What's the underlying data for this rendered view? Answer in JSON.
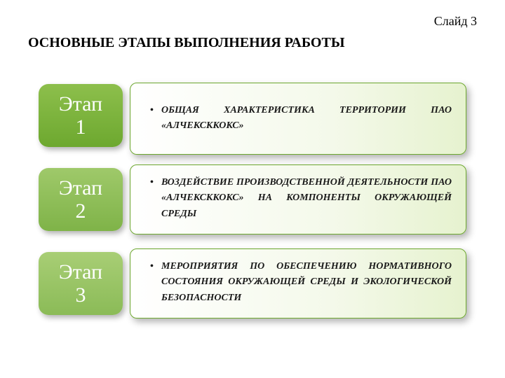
{
  "slide_number": "Слайд 3",
  "title": "ОСНОВНЫЕ ЭТАПЫ ВЫПОЛНЕНИЯ РАБОТЫ",
  "stages": [
    {
      "label_line1": "Этап",
      "label_line2": "1",
      "badge_gradient": [
        "#8dbf4c",
        "#6da82f"
      ],
      "description": "ОБЩАЯ ХАРАКТЕРИСТИКА ТЕРРИТОРИИ ПАО «АЛЧЕКСККОКС»"
    },
    {
      "label_line1": "Этап",
      "label_line2": "2",
      "badge_gradient": [
        "#9fc96a",
        "#7fb348"
      ],
      "description": "ВОЗДЕЙСТВИЕ ПРОИЗВОДСТВЕННОЙ ДЕЯТЕЛЬНОСТИ ПАО «АЛЧЕКСККОКС» НА КОМПОНЕНТЫ ОКРУЖАЮЩЕЙ СРЕДЫ"
    },
    {
      "label_line1": "Этап",
      "label_line2": "3",
      "badge_gradient": [
        "#a8ce75",
        "#8bbb57"
      ],
      "description": "МЕРОПРИЯТИЯ ПО ОБЕСПЕЧЕНИЮ НОРМАТИВНОГО СОСТОЯНИЯ ОКРУЖАЮЩЕЙ СРЕДЫ И ЭКОЛОГИЧЕСКОЙ БЕЗОПАСНОСТИ"
    }
  ],
  "styling": {
    "background_color": "#ffffff",
    "title_fontsize": 20,
    "title_color": "#000000",
    "slide_number_fontsize": 18,
    "badge_text_color": "#ffffff",
    "badge_fontsize": 30,
    "badge_border_radius": 14,
    "badge_shadow": "3px 4px 8px rgba(0,0,0,0.3)",
    "desc_border_color": "#6da82f",
    "desc_gradient": [
      "#ffffff",
      "#f4f9ea",
      "#e6f2cf"
    ],
    "desc_border_radius": 10,
    "desc_shadow": "4px 5px 10px rgba(0,0,0,0.3)",
    "desc_fontsize": 14,
    "desc_fontstyle": "italic",
    "desc_fontweight": "bold",
    "desc_color": "#1a1a1a",
    "font_family": "Times New Roman"
  }
}
